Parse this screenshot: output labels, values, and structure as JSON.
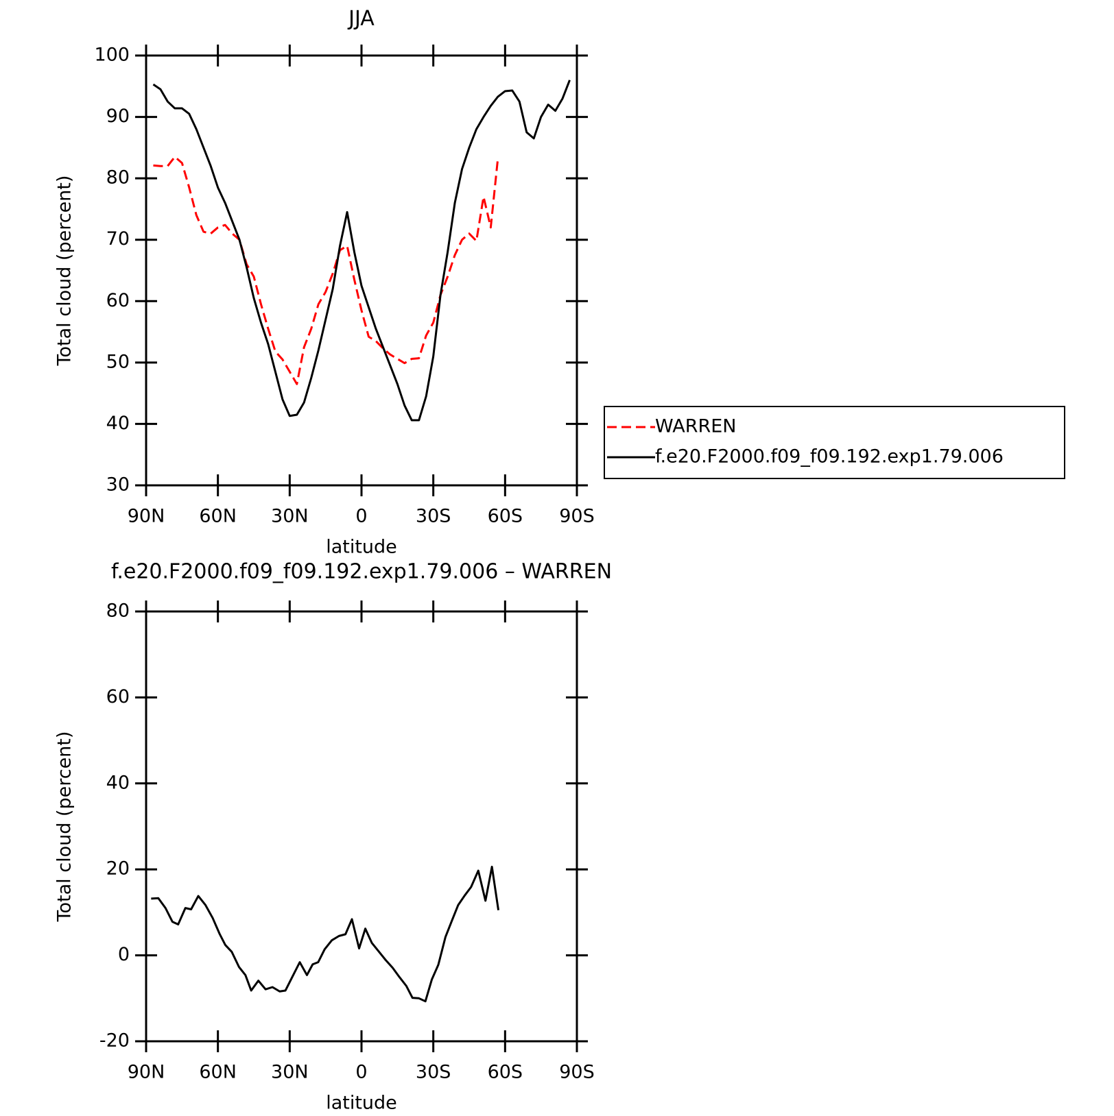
{
  "chart_data": [
    {
      "type": "line",
      "title": "JJA",
      "xlabel": "latitude",
      "ylabel": "Total cloud (percent)",
      "x": [
        87,
        84,
        81,
        78,
        75,
        72,
        69,
        66,
        63,
        60,
        57,
        54,
        51,
        48,
        45,
        42,
        39,
        36,
        33,
        30,
        27,
        24,
        21,
        18,
        15,
        12,
        9,
        6,
        3,
        0,
        -3,
        -6,
        -9,
        -12,
        -15,
        -18,
        -21,
        -24,
        -27,
        -30,
        -33,
        -36,
        -39,
        -42,
        -45,
        -48,
        -51,
        -54,
        -57,
        -60,
        -63,
        -66,
        -69,
        -72,
        -75,
        -78,
        -81,
        -84,
        -87
      ],
      "xlim": [
        90,
        -90
      ],
      "xticks": [
        {
          "value": 90,
          "label": "90N"
        },
        {
          "value": 60,
          "label": "60N"
        },
        {
          "value": 30,
          "label": "30N"
        },
        0,
        {
          "value": -30,
          "label": "30S"
        },
        {
          "value": -60,
          "label": "60S"
        },
        {
          "value": -90,
          "label": "90S"
        }
      ],
      "ylim": [
        30,
        100
      ],
      "yticks": [
        30,
        40,
        50,
        60,
        70,
        80,
        90,
        100
      ],
      "legend": "right",
      "series": [
        {
          "name": "WARREN",
          "color": "#ff0000",
          "dash": "dashed",
          "values": [
            82.1,
            82,
            82,
            83.5,
            82.5,
            78.5,
            74,
            71.3,
            71,
            72,
            72.4,
            71,
            70,
            66,
            64,
            59.5,
            55.5,
            51.8,
            50.5,
            48.5,
            46.5,
            52.5,
            55.5,
            59.5,
            61.5,
            64.5,
            68.3,
            69,
            63.5,
            58.5,
            54.2,
            53.5,
            52.3,
            51.3,
            50.6,
            49.9,
            50.6,
            50.7,
            54.4,
            56.5,
            61,
            64,
            67.5,
            70,
            71,
            69.8,
            77,
            72,
            83.3,
            null,
            null,
            null,
            null,
            null,
            null,
            null,
            null,
            null,
            null
          ]
        },
        {
          "name": "f.e20.F2000.f09_f09.192.exp1.79.006",
          "color": "#000000",
          "dash": "solid",
          "values": [
            95.3,
            94.5,
            92.5,
            91.4,
            91.4,
            90.5,
            88,
            85,
            82,
            78.5,
            76,
            73,
            70,
            65.5,
            60.5,
            56.5,
            53,
            48.5,
            44,
            41.3,
            41.5,
            43.5,
            47.5,
            52,
            57,
            62,
            69,
            74.5,
            68,
            62.5,
            59,
            55.5,
            52.5,
            49.5,
            46.5,
            43,
            40.6,
            40.6,
            44.5,
            51,
            61,
            68,
            76,
            81.5,
            85,
            88,
            90,
            91.8,
            93.3,
            94.2,
            94.3,
            92.5,
            87.5,
            86.5,
            90,
            92,
            91,
            93,
            96
          ]
        }
      ]
    },
    {
      "type": "line",
      "title": "f.e20.F2000.f09_f09.192.exp1.79.006 – WARREN",
      "xlabel": "latitude",
      "ylabel": "Total cloud (percent)",
      "x": [
        87.9,
        84.9,
        81.9,
        79.0,
        76.6,
        73.6,
        71.2,
        68.2,
        65.2,
        62.2,
        59.3,
        56.9,
        54.2,
        51.2,
        48.5,
        46.1,
        43.1,
        40.1,
        37.2,
        34.2,
        31.8,
        28.8,
        25.8,
        22.8,
        20.4,
        18.1,
        15.4,
        12.4,
        9.4,
        6.7,
        4.0,
        1.0,
        -1.6,
        -4.3,
        -7.2,
        -10.1,
        -13.0,
        -15.9,
        -18.7,
        -21.3,
        -24.0,
        -26.7,
        -29.4,
        -32.1,
        -35.1,
        -37.8,
        -40.4,
        -43.1,
        -45.8,
        -48.8,
        -51.8,
        -54.5,
        -57.2
      ],
      "xlim": [
        90,
        -90
      ],
      "xticks": [
        {
          "value": 90,
          "label": "90N"
        },
        {
          "value": 60,
          "label": "60N"
        },
        {
          "value": 30,
          "label": "30N"
        },
        0,
        {
          "value": -30,
          "label": "30S"
        },
        {
          "value": -60,
          "label": "60S"
        },
        {
          "value": -90,
          "label": "90S"
        }
      ],
      "ylim": [
        -20,
        80
      ],
      "yticks": [
        -20,
        0,
        20,
        40,
        60,
        80
      ],
      "color": "#000000",
      "values": [
        13.2,
        13.3,
        11,
        7.8,
        7.2,
        11,
        10.7,
        13.8,
        11.7,
        8.7,
        5,
        2.4,
        0.8,
        -2.7,
        -4.6,
        -8.2,
        -5.9,
        -7.9,
        -7.4,
        -8.4,
        -8.2,
        -4.9,
        -1.6,
        -4.6,
        -2.1,
        -1.6,
        1.4,
        3.5,
        4.5,
        4.9,
        8.4,
        1.6,
        6.2,
        2.9,
        0.9,
        -1.1,
        -2.9,
        -5.1,
        -7.1,
        -9.9,
        -10,
        -10.7,
        -5.6,
        -2.2,
        4.3,
        8.1,
        11.7,
        13.9,
        15.9,
        19.7,
        12.7,
        20.6,
        10.5
      ]
    }
  ]
}
